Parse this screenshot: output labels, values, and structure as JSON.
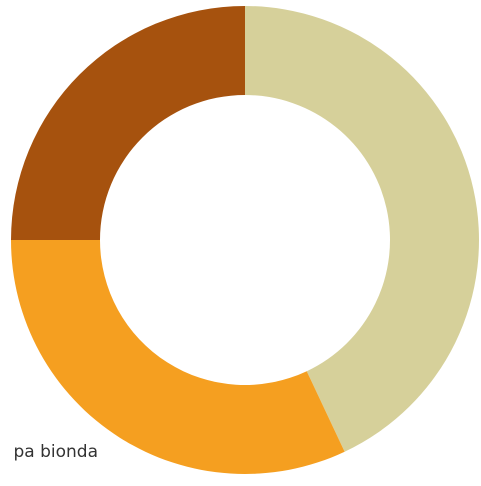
{
  "chart_data": {
    "type": "donut",
    "categories": [
      null,
      "pa bionda",
      null
    ],
    "values": [
      43,
      32,
      25
    ],
    "colors": [
      "#d6d09a",
      "#f59f20",
      "#a6520e"
    ],
    "start_angle": 0,
    "direction": "clockwise"
  }
}
